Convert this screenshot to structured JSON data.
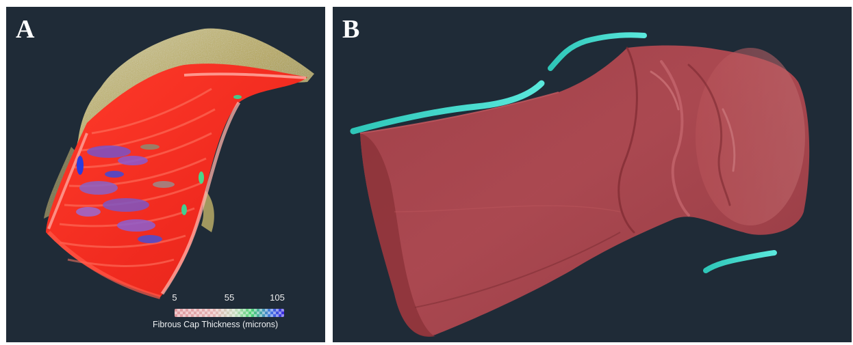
{
  "panels": {
    "a": {
      "label": "A",
      "colorbar": {
        "ticks": [
          "5",
          "55",
          "105"
        ],
        "title": "Fibrous Cap Thickness (microns)",
        "colors": [
          "#e9a0a5",
          "#f0b9b9",
          "#d2e6c8",
          "#50dc78",
          "#4678eb",
          "#3c28e6"
        ]
      }
    },
    "b": {
      "label": "B"
    }
  },
  "colors": {
    "background": "#1f2b37",
    "vessel_red": "#b8454b",
    "calcium_cyan": "#35d6c8",
    "plaque_yellow": "#c9b64a"
  }
}
